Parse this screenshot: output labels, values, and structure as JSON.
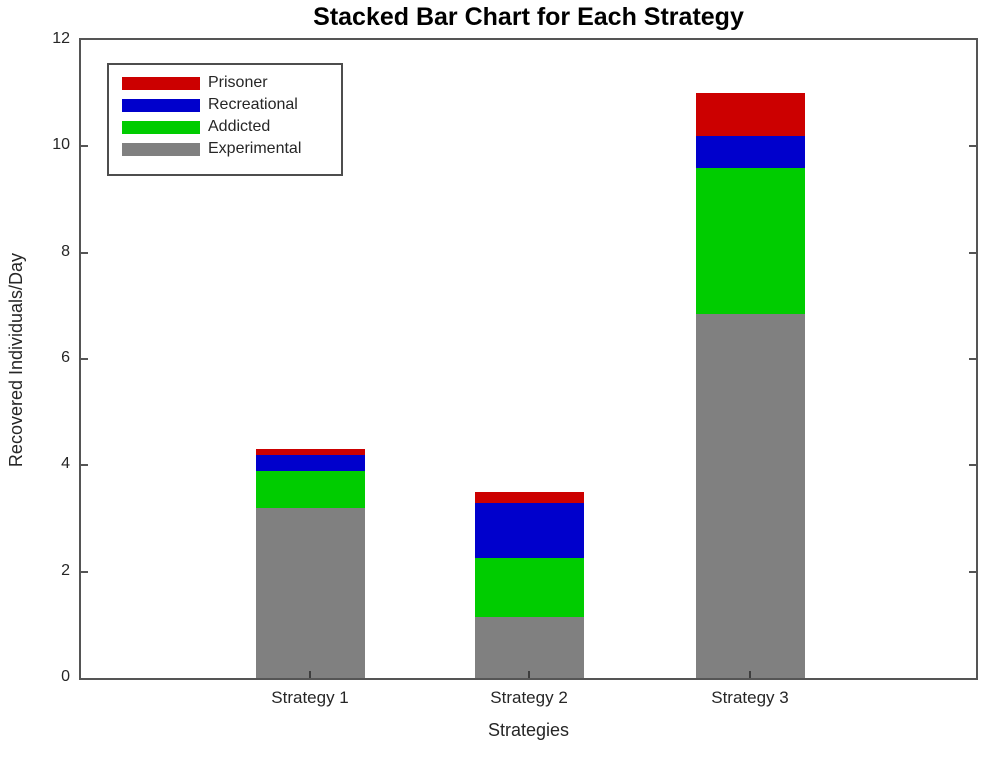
{
  "title": "Stacked Bar Chart for Each Strategy",
  "colors": {
    "prisoner_red": "#CC0000",
    "recreational_blue": "#0000CC",
    "addicted_green": "#00CC00",
    "experimental_gray": "#808080",
    "axis": "#555555",
    "text": "#262626",
    "legend_border": "#4D4D4D",
    "background": "#FFFFFF"
  },
  "chart_data": {
    "type": "bar",
    "stacked": true,
    "title": "Stacked Bar Chart for Each Strategy",
    "xlabel": "Strategies",
    "ylabel": "Recovered Individuals/Day",
    "ylim": [
      0,
      12
    ],
    "yticks": [
      0,
      2,
      4,
      6,
      8,
      10,
      12
    ],
    "grid": false,
    "categories": [
      "Strategy 1",
      "Strategy 2",
      "Strategy 3"
    ],
    "series": [
      {
        "name": "Experimental",
        "color": "#808080",
        "values": [
          3.2,
          1.15,
          6.85
        ]
      },
      {
        "name": "Addicted",
        "color": "#00CC00",
        "values": [
          0.7,
          1.1,
          2.75
        ]
      },
      {
        "name": "Recreational",
        "color": "#0000CC",
        "values": [
          0.3,
          1.05,
          0.6
        ]
      },
      {
        "name": "Prisoner",
        "color": "#CC0000",
        "values": [
          0.1,
          0.2,
          0.8
        ]
      }
    ],
    "totals": [
      4.3,
      3.5,
      11.0
    ],
    "legend": {
      "position": "top-left",
      "entries": [
        "Prisoner",
        "Recreational",
        "Addicted",
        "Experimental"
      ]
    }
  }
}
